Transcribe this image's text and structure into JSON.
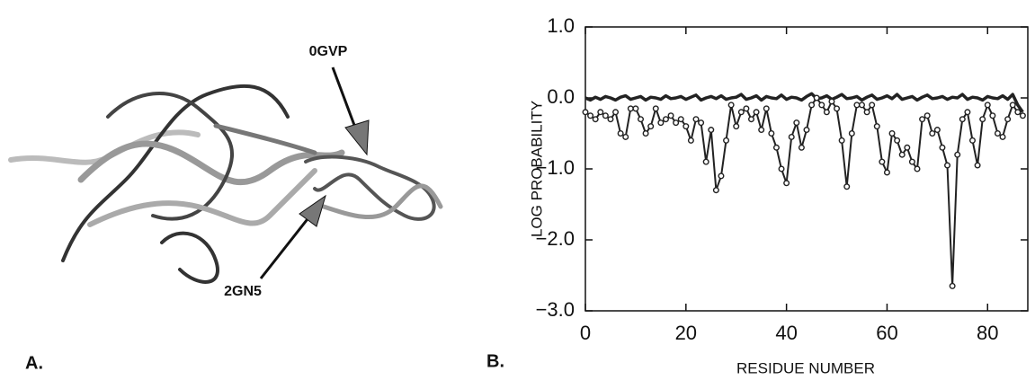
{
  "panel_a": {
    "label": "A.",
    "annotation_top": "0GVP",
    "annotation_bottom": "2GN5"
  },
  "chart_data": {
    "type": "line",
    "panel_label": "B.",
    "x_label": "RESIDUE NUMBER",
    "y_label": "LOG PROBABILITY",
    "x": [
      0,
      1,
      2,
      3,
      4,
      5,
      6,
      7,
      8,
      9,
      10,
      11,
      12,
      13,
      14,
      15,
      16,
      17,
      18,
      19,
      20,
      21,
      22,
      23,
      24,
      25,
      26,
      27,
      28,
      29,
      30,
      31,
      32,
      33,
      34,
      35,
      36,
      37,
      38,
      39,
      40,
      41,
      42,
      43,
      44,
      45,
      46,
      47,
      48,
      49,
      50,
      51,
      52,
      53,
      54,
      55,
      56,
      57,
      58,
      59,
      60,
      61,
      62,
      63,
      64,
      65,
      66,
      67,
      68,
      69,
      70,
      71,
      72,
      73,
      74,
      75,
      76,
      77,
      78,
      79,
      80,
      81,
      82,
      83,
      84,
      85,
      86,
      87
    ],
    "series": [
      {
        "color": "#222222",
        "markers": false,
        "values": [
          0.0,
          -0.03,
          0.01,
          -0.02,
          0.02,
          0.0,
          -0.03,
          0.01,
          0.03,
          -0.02,
          0.0,
          0.02,
          -0.03,
          0.01,
          0.0,
          -0.02,
          0.03,
          -0.01,
          0.0,
          0.02,
          -0.02,
          0.01,
          0.04,
          -0.03,
          0.0,
          0.02,
          -0.01,
          0.03,
          -0.02,
          0.0,
          0.01,
          0.05,
          -0.02,
          0.0,
          0.03,
          -0.03,
          0.02,
          0.0,
          -0.01,
          0.04,
          -0.02,
          0.01,
          0.0,
          -0.03,
          0.02,
          0.06,
          -0.01,
          0.0,
          0.03,
          -0.02,
          0.01,
          0.05,
          -0.01,
          0.0,
          0.02,
          -0.03,
          0.01,
          0.04,
          -0.02,
          0.0,
          0.03,
          -0.01,
          0.05,
          -0.02,
          0.0,
          0.02,
          -0.03,
          0.01,
          0.04,
          -0.01,
          0.0,
          0.02,
          -0.02,
          0.01,
          0.0,
          0.05,
          -0.02,
          0.01,
          0.0,
          -0.03,
          0.02,
          0.0,
          -0.01,
          0.03,
          -0.02,
          0.05,
          -0.1,
          -0.2
        ]
      },
      {
        "color": "#222222",
        "markers": true,
        "values": [
          -0.2,
          -0.25,
          -0.3,
          -0.2,
          -0.25,
          -0.3,
          -0.2,
          -0.5,
          -0.55,
          -0.15,
          -0.15,
          -0.3,
          -0.5,
          -0.4,
          -0.15,
          -0.35,
          -0.3,
          -0.25,
          -0.35,
          -0.3,
          -0.4,
          -0.6,
          -0.3,
          -0.35,
          -0.9,
          -0.45,
          -1.3,
          -1.1,
          -0.6,
          -0.1,
          -0.4,
          -0.2,
          -0.15,
          -0.3,
          -0.2,
          -0.45,
          -0.15,
          -0.5,
          -0.7,
          -1.0,
          -1.2,
          -0.55,
          -0.35,
          -0.7,
          -0.45,
          -0.1,
          0.0,
          -0.1,
          -0.2,
          -0.05,
          -0.15,
          -0.6,
          -1.25,
          -0.5,
          -0.1,
          -0.1,
          -0.2,
          -0.1,
          -0.4,
          -0.9,
          -1.05,
          -0.5,
          -0.6,
          -0.8,
          -0.7,
          -0.9,
          -1.0,
          -0.3,
          -0.25,
          -0.5,
          -0.45,
          -0.7,
          -0.95,
          -2.65,
          -0.8,
          -0.3,
          -0.2,
          -0.6,
          -0.95,
          -0.3,
          -0.1,
          -0.25,
          -0.5,
          -0.55,
          -0.3,
          -0.1,
          -0.2,
          -0.25
        ]
      }
    ],
    "xlim": [
      0,
      88
    ],
    "ylim": [
      -3,
      1
    ],
    "xticks": [
      0,
      20,
      40,
      60,
      80
    ],
    "yticks": [
      {
        "value": -3,
        "label": "−3.0"
      },
      {
        "value": -2,
        "label": "−2.0"
      },
      {
        "value": -1,
        "label": "−1.0"
      },
      {
        "value": 0,
        "label": "0.0"
      },
      {
        "value": 1,
        "label": "1.0"
      }
    ]
  }
}
